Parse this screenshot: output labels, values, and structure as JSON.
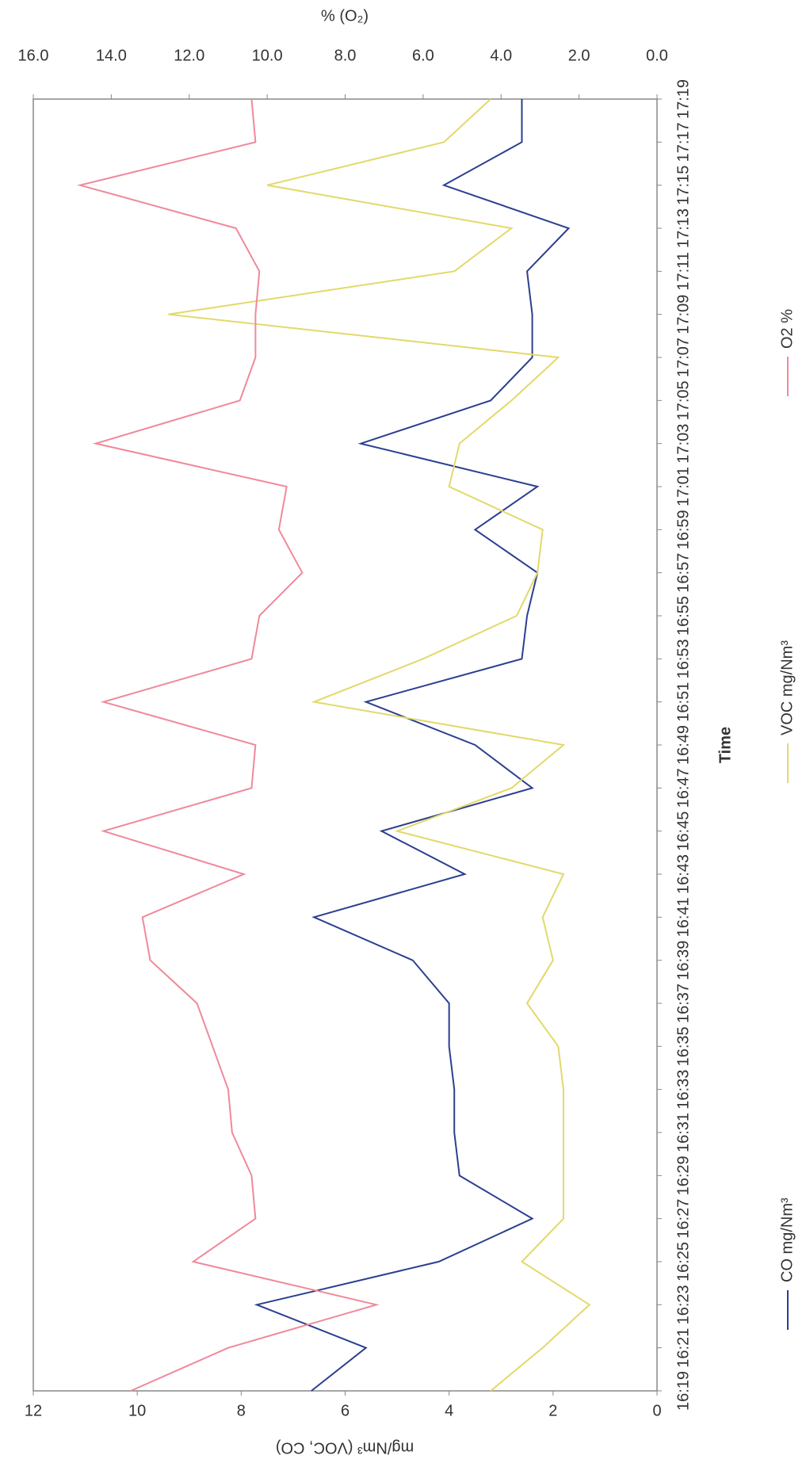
{
  "chart_data": {
    "type": "line",
    "x_label": "Time",
    "y_label": "mg/Nm³ (VOC, CO)",
    "y2_label": "% (O₂)",
    "categories": [
      "16:19",
      "16:21",
      "16:23",
      "16:25",
      "16:27",
      "16:29",
      "16:31",
      "16:33",
      "16:35",
      "16:37",
      "16:39",
      "16:41",
      "16:43",
      "16:45",
      "16:47",
      "16:49",
      "16:51",
      "16:53",
      "16:55",
      "16:57",
      "16:59",
      "17:01",
      "17:03",
      "17:05",
      "17:07",
      "17:09",
      "17:11",
      "17:13",
      "17:15",
      "17:17",
      "17:19"
    ],
    "series": [
      {
        "name": "CO mg/Nm³",
        "color": "#2b3f8f",
        "values": [
          6.65,
          5.6,
          7.7,
          4.2,
          2.4,
          3.8,
          3.9,
          3.9,
          4.0,
          4.0,
          4.7,
          6.6,
          3.7,
          5.3,
          2.4,
          3.5,
          5.6,
          2.6,
          2.5,
          2.3,
          3.5,
          2.3,
          5.7,
          3.2,
          2.4,
          2.4,
          2.5,
          1.7,
          4.1,
          2.6,
          2.6
        ]
      },
      {
        "name": "VOC mg/Nm³",
        "color": "#e2d96a",
        "values": [
          3.2,
          2.2,
          1.3,
          2.6,
          1.8,
          1.8,
          1.8,
          1.8,
          1.9,
          2.5,
          2.0,
          2.2,
          1.8,
          5.0,
          2.8,
          1.8,
          6.6,
          4.5,
          2.7,
          2.3,
          2.2,
          4.0,
          3.8,
          2.8,
          1.9,
          9.4,
          3.9,
          2.8,
          7.5,
          4.1,
          3.2
        ]
      },
      {
        "name": "O2 %",
        "color": "#f0899a",
        "axis": "y2",
        "values": [
          13.5,
          11.0,
          7.2,
          11.9,
          10.3,
          10.4,
          10.9,
          11.0,
          11.4,
          11.8,
          13.0,
          13.2,
          10.6,
          14.2,
          10.4,
          10.3,
          14.2,
          10.4,
          10.2,
          9.1,
          9.7,
          9.5,
          14.4,
          10.7,
          10.3,
          10.3,
          10.2,
          10.8,
          14.8,
          10.3,
          10.4
        ]
      }
    ],
    "ylim": [
      0,
      12
    ],
    "yticks": [
      0,
      2,
      4,
      6,
      8,
      10,
      12
    ],
    "y2lim": [
      0,
      16
    ],
    "y2ticks": [
      {
        "value": 0,
        "label": "0.0"
      },
      {
        "value": 2,
        "label": "2.0"
      },
      {
        "value": 4,
        "label": "4.0"
      },
      {
        "value": 6,
        "label": "6.0"
      },
      {
        "value": 8,
        "label": "8.0"
      },
      {
        "value": 10,
        "label": "10.0"
      },
      {
        "value": 12,
        "label": "12.0"
      },
      {
        "value": 14,
        "label": "14.0"
      },
      {
        "value": 16,
        "label": "16.0"
      }
    ],
    "legend": "bottom"
  }
}
